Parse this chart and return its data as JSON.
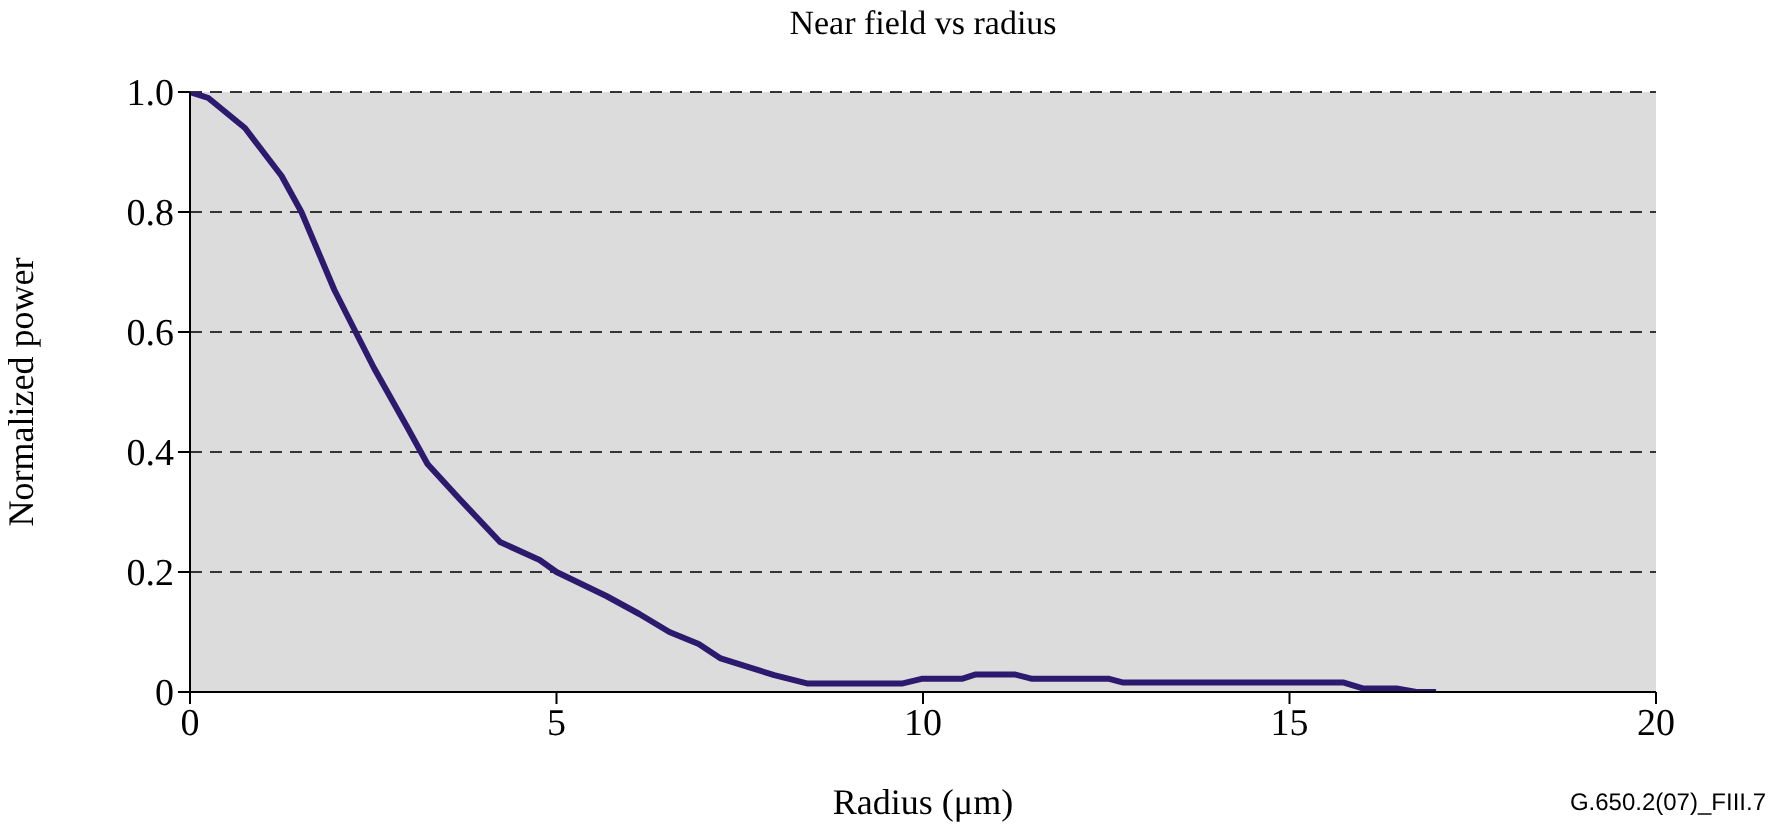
{
  "chart_data": {
    "type": "line",
    "title": "Near field vs radius",
    "xlabel": "Radius (μm)",
    "ylabel": "Normalized power",
    "annotations": [
      "G.650.2(07)_FIII.7"
    ],
    "xlim": [
      0,
      20
    ],
    "xticks": [
      0,
      5,
      10,
      15,
      20
    ],
    "ylim": [
      0,
      1
    ],
    "yticks": [
      {
        "value": 0,
        "label": "0"
      },
      {
        "value": 0.2,
        "label": "0.2"
      },
      {
        "value": 0.4,
        "label": "0.4"
      },
      {
        "value": 0.6,
        "label": "0.6"
      },
      {
        "value": 0.8,
        "label": "0.8"
      },
      {
        "value": 1,
        "label": "1.0"
      }
    ],
    "grid": "y",
    "marker": "none",
    "line_style": "solid",
    "series": [
      {
        "color": "#2b1a6e",
        "x": [
          0,
          0.25,
          0.75,
          1.25,
          1.52,
          1.97,
          2.26,
          2.51,
          2.97,
          3.24,
          3.69,
          4.23,
          4.77,
          5.0,
          5.68,
          6.13,
          6.54,
          6.94,
          7.24,
          7.61,
          7.97,
          8.43,
          9.71,
          9.98,
          10.53,
          10.71,
          11.26,
          11.49,
          12.54,
          12.72,
          15.73,
          16.0,
          16.46,
          16.73,
          17.0
        ],
        "values": [
          1.0,
          0.99,
          0.94,
          0.86,
          0.8,
          0.67,
          0.6,
          0.54,
          0.44,
          0.38,
          0.32,
          0.25,
          0.22,
          0.2,
          0.16,
          0.13,
          0.1,
          0.08,
          0.056,
          0.042,
          0.028,
          0.014,
          0.014,
          0.022,
          0.022,
          0.029,
          0.029,
          0.022,
          0.022,
          0.016,
          0.016,
          0.006,
          0.006,
          0,
          0
        ]
      }
    ]
  }
}
